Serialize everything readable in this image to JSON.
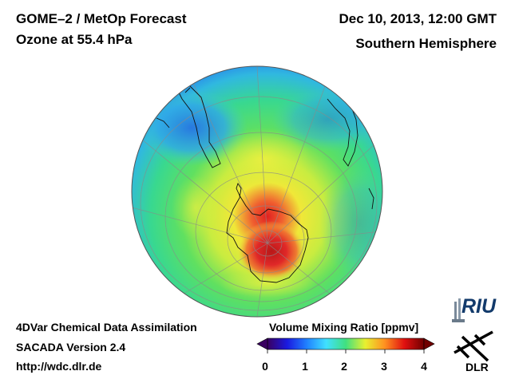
{
  "header": {
    "instrument": "GOME–2 / MetOp Forecast",
    "quantity": "Ozone at 55.4 hPa",
    "datetime": "Dec 10, 2013, 12:00 GMT",
    "region": "Southern Hemisphere"
  },
  "footer": {
    "method": "4DVar Chemical Data Assimilation",
    "system": "SACADA Version 2.4",
    "url": "http://wdc.dlr.de"
  },
  "colorbar": {
    "title": "Volume Mixing Ratio [ppmv]",
    "ticks": [
      "0",
      "1",
      "2",
      "3",
      "4"
    ],
    "range": [
      0,
      4
    ],
    "colors": [
      "#3a0060",
      "#1a1ae0",
      "#2080ff",
      "#40e0ff",
      "#40e080",
      "#e8f030",
      "#ff9020",
      "#e01010",
      "#700000"
    ]
  },
  "logos": {
    "riu": "RIU",
    "dlr": "DLR"
  },
  "map": {
    "projection": "orthographic",
    "hemisphere": "south",
    "ozone_hole_max_ppmv": 4,
    "ozone_hole_location": "Antarctica"
  }
}
